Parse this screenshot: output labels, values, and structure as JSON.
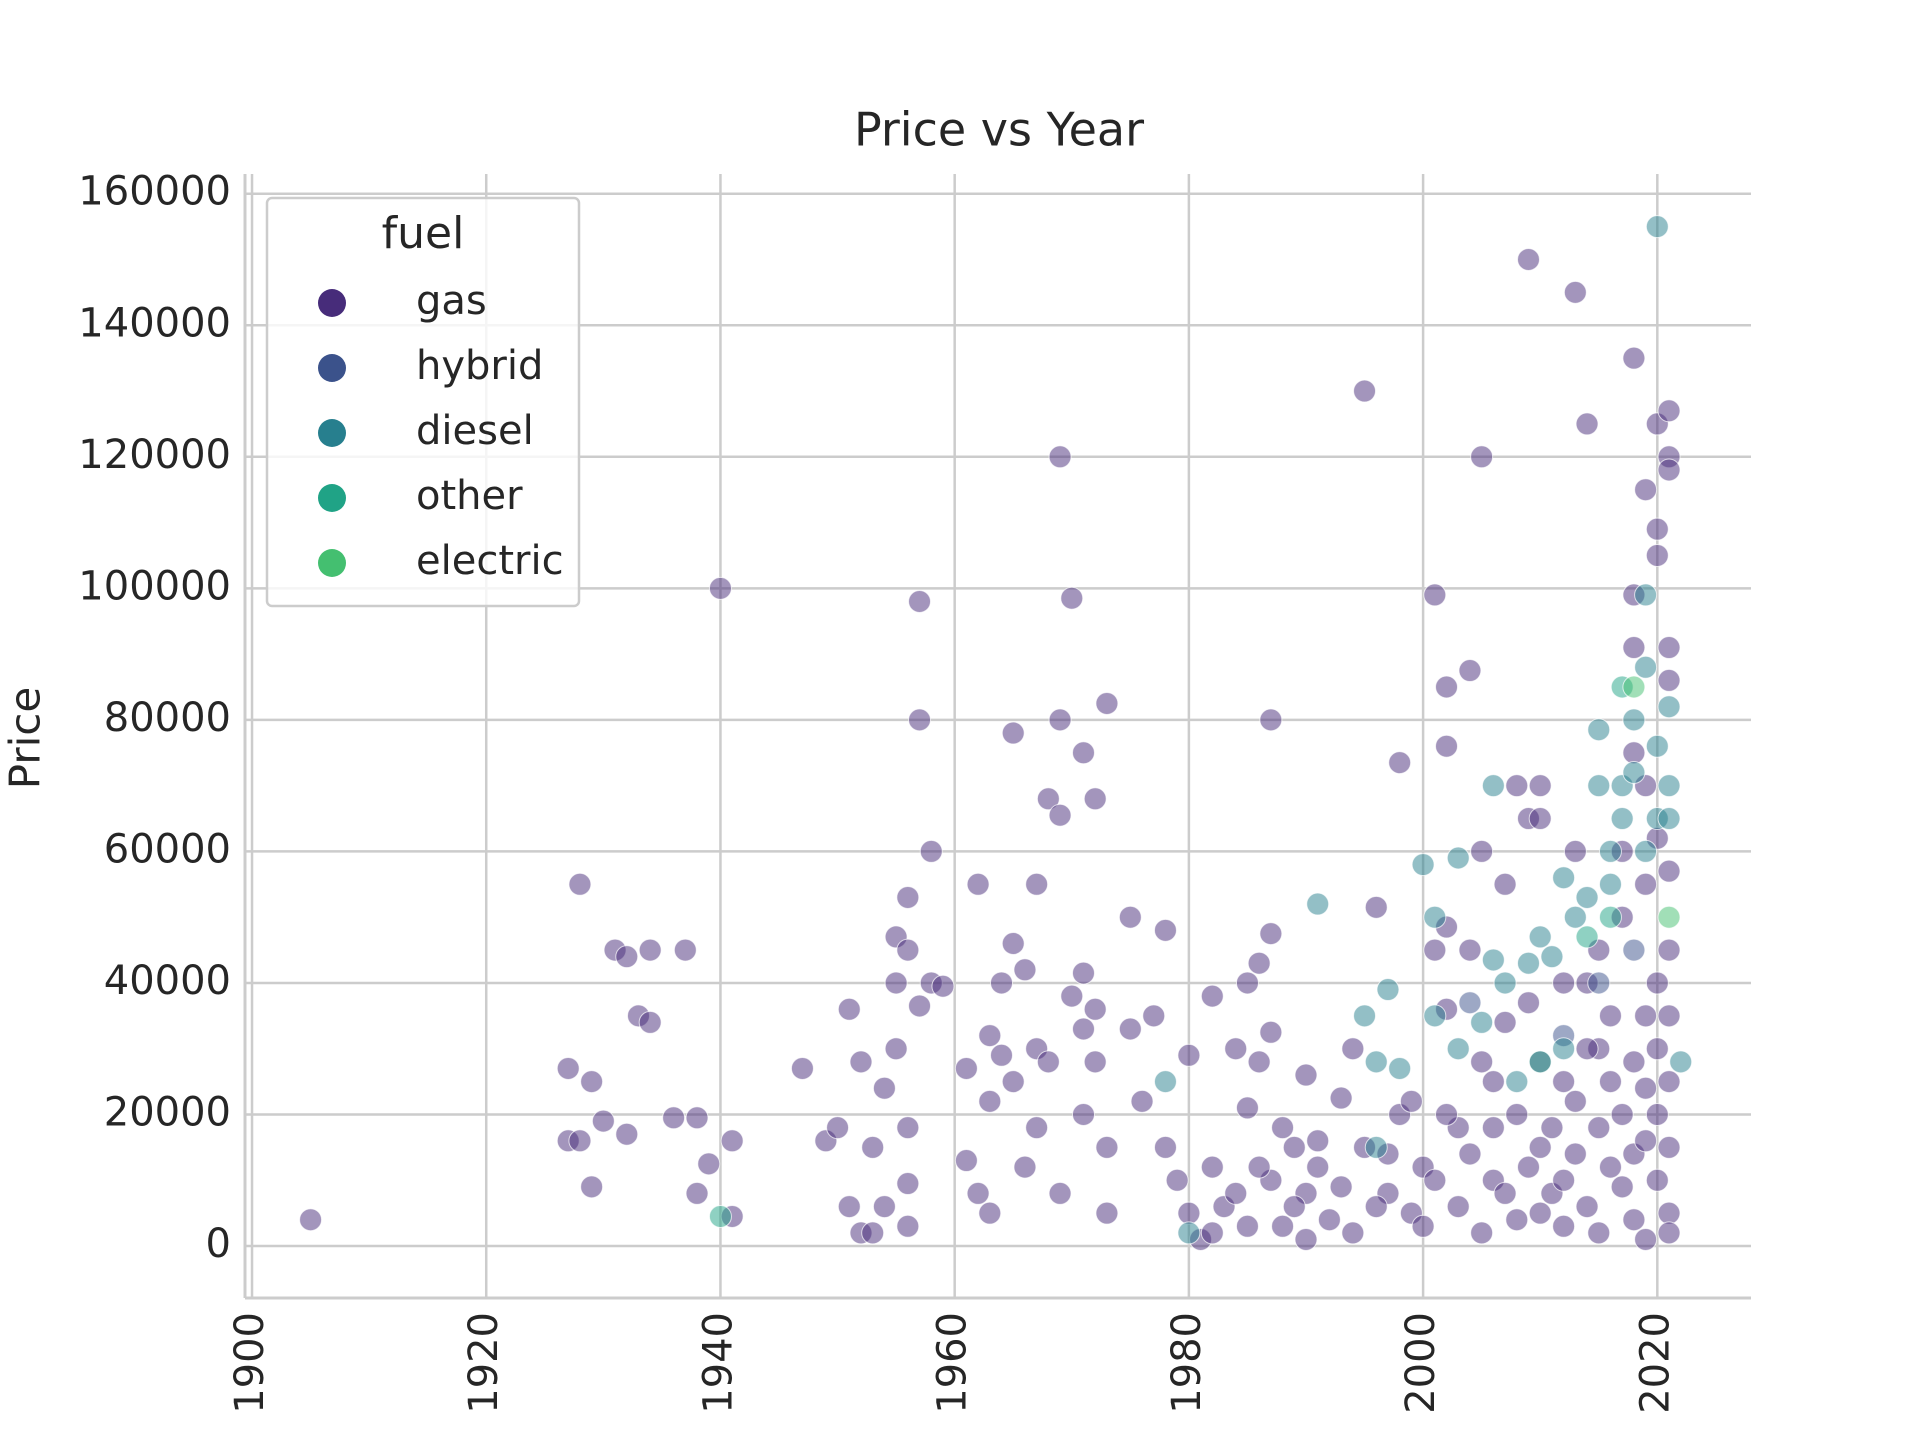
{
  "chart_data": {
    "type": "scatter",
    "title": "Price vs Year",
    "y_label": "Price",
    "legend_title": "fuel",
    "legend_position": "upper left",
    "grid": true,
    "xlim": [
      1899.4,
      2028
    ],
    "ylim": [
      -7900,
      163000
    ],
    "xticks": [
      1900,
      1920,
      1940,
      1960,
      1980,
      2000,
      2020
    ],
    "yticks": [
      0,
      20000,
      40000,
      60000,
      80000,
      100000,
      120000,
      140000,
      160000
    ],
    "series": [
      {
        "name": "gas",
        "color": "#472c7a",
        "x": [
          1905,
          1927,
          1927,
          1928,
          1928,
          1929,
          1929,
          1930,
          1931,
          1932,
          1932,
          1933,
          1934,
          1934,
          1936,
          1937,
          1938,
          1938,
          1939,
          1940,
          1941,
          1941,
          1947,
          1949,
          1950,
          1951,
          1951,
          1952,
          1952,
          1953,
          1953,
          1954,
          1954,
          1955,
          1955,
          1955,
          1956,
          1956,
          1956,
          1956,
          1956,
          1957,
          1957,
          1957,
          1958,
          1958,
          1959,
          1961,
          1961,
          1962,
          1962,
          1963,
          1963,
          1963,
          1964,
          1964,
          1965,
          1965,
          1965,
          1966,
          1966,
          1967,
          1967,
          1967,
          1968,
          1968,
          1969,
          1969,
          1969,
          1969,
          1970,
          1970,
          1971,
          1971,
          1971,
          1971,
          1972,
          1972,
          1972,
          1973,
          1973,
          1973,
          1975,
          1975,
          1976,
          1977,
          1978,
          1978,
          1979,
          1980,
          1980,
          1981,
          1982,
          1982,
          1983,
          1984,
          1985,
          1985,
          1986,
          1986,
          1987,
          1987,
          1987,
          1987,
          1988,
          1989,
          1990,
          1990,
          1991,
          1992,
          1993,
          1994,
          1995,
          1995,
          1996,
          1997,
          1998,
          1998,
          1999,
          2000,
          2001,
          2001,
          2002,
          2002,
          2002,
          2002,
          2003,
          2004,
          2004,
          2005,
          2005,
          2005,
          2006,
          2007,
          2007,
          2008,
          2008,
          2009,
          2009,
          2009,
          2010,
          2010,
          2010,
          2011,
          2012,
          2013,
          2013,
          2014,
          2014,
          2015,
          2016,
          2017,
          2018,
          2018,
          2018,
          2019,
          2019,
          2019,
          2020,
          2020,
          2020,
          2020,
          2021,
          2021,
          2021,
          2021,
          2021,
          2021,
          2021,
          2021,
          1982,
          1984,
          1985,
          1986,
          1988,
          1989,
          1990,
          1991,
          1993,
          1994,
          1996,
          1997,
          1999,
          2000,
          2001,
          2002,
          2003,
          2004,
          2005,
          2006,
          2006,
          2007,
          2008,
          2009,
          2010,
          2010,
          2011,
          2012,
          2012,
          2013,
          2013,
          2014,
          2014,
          2015,
          2015,
          2016,
          2016,
          2017,
          2017,
          2018,
          2018,
          2018,
          2019,
          2019,
          2019,
          2020,
          2020,
          2020,
          2021,
          2021,
          2021,
          2021,
          2012,
          2015,
          2017,
          2019,
          2020,
          2018
        ],
        "values": [
          4000,
          27000,
          16000,
          55000,
          16000,
          25000,
          9000,
          19000,
          45000,
          44000,
          17000,
          35000,
          34000,
          45000,
          19500,
          45000,
          19500,
          8000,
          12500,
          100000,
          4500,
          16000,
          27000,
          16000,
          18000,
          36000,
          6000,
          28000,
          2000,
          2000,
          15000,
          24000,
          6000,
          30000,
          40000,
          47000,
          53000,
          45000,
          18000,
          3000,
          9500,
          98000,
          80000,
          36500,
          60000,
          40000,
          39500,
          27000,
          13000,
          55000,
          8000,
          5000,
          32000,
          22000,
          29000,
          40000,
          78000,
          46000,
          25000,
          42000,
          12000,
          55000,
          18000,
          30000,
          68000,
          28000,
          120000,
          80000,
          65500,
          8000,
          98500,
          38000,
          75000,
          41500,
          33000,
          20000,
          68000,
          36000,
          28000,
          82500,
          15000,
          5000,
          50000,
          33000,
          22000,
          35000,
          48000,
          15000,
          10000,
          29000,
          5000,
          1000,
          38000,
          12000,
          6000,
          30000,
          40000,
          21000,
          43000,
          28000,
          80000,
          47500,
          32500,
          10000,
          3000,
          15000,
          26000,
          8000,
          12000,
          4000,
          22500,
          30000,
          130000,
          15000,
          51500,
          8000,
          73500,
          20000,
          5000,
          12000,
          99000,
          45000,
          85000,
          76000,
          48500,
          36000,
          18000,
          87500,
          45000,
          120000,
          60000,
          28000,
          10000,
          55000,
          34000,
          70000,
          20000,
          150000,
          65000,
          37000,
          70000,
          65000,
          15000,
          8000,
          25000,
          145000,
          60000,
          125000,
          40000,
          30000,
          12000,
          50000,
          135000,
          99000,
          91000,
          115000,
          70000,
          35000,
          125000,
          109000,
          105000,
          20000,
          127000,
          120000,
          118000,
          91000,
          86000,
          57000,
          45000,
          5000,
          2000,
          8000,
          3000,
          12000,
          18000,
          6000,
          1000,
          16000,
          9000,
          2000,
          6000,
          14000,
          22000,
          3000,
          10000,
          20000,
          6000,
          14000,
          2000,
          18000,
          25000,
          8000,
          4000,
          12000,
          28000,
          5000,
          18000,
          10000,
          3000,
          22000,
          14000,
          6000,
          30000,
          18000,
          2000,
          25000,
          35000,
          9000,
          20000,
          14000,
          28000,
          4000,
          16000,
          24000,
          1000,
          10000,
          30000,
          40000,
          15000,
          25000,
          35000,
          2000,
          40000,
          45000,
          60000,
          55000,
          62000,
          75000
        ]
      },
      {
        "name": "hybrid",
        "color": "#3b528b",
        "x": [
          2004,
          2012,
          2015,
          2018
        ],
        "values": [
          37000,
          32000,
          40000,
          45000
        ]
      },
      {
        "name": "diesel",
        "color": "#277f8e",
        "x": [
          1991,
          1995,
          1996,
          1997,
          1998,
          2000,
          2001,
          2001,
          2003,
          2003,
          2006,
          2006,
          2007,
          2008,
          2009,
          2010,
          2011,
          2012,
          2012,
          2013,
          2014,
          2015,
          2015,
          2016,
          2016,
          2017,
          2017,
          2018,
          2018,
          2019,
          2019,
          2019,
          2020,
          2020,
          2020,
          2021,
          2021,
          2021,
          2022,
          2005,
          1996,
          1980,
          1978
        ],
        "values": [
          52000,
          35000,
          28000,
          39000,
          27000,
          58000,
          50000,
          35000,
          59000,
          30000,
          70000,
          43500,
          40000,
          25000,
          43000,
          47000,
          44000,
          56000,
          30000,
          50000,
          53000,
          78500,
          70000,
          60000,
          55000,
          70000,
          65000,
          80000,
          72000,
          88000,
          99000,
          60000,
          155000,
          76000,
          65000,
          82000,
          70000,
          65000,
          28000,
          34000,
          15000,
          2000,
          25000
        ]
      },
      {
        "name": "other",
        "color": "#20a386",
        "x": [
          1940,
          2017,
          2014,
          2016,
          2010
        ],
        "values": [
          4500,
          85000,
          47000,
          50000,
          28000
        ]
      },
      {
        "name": "electric",
        "color": "#44bf70",
        "x": [
          2021,
          2018
        ],
        "values": [
          50000,
          85000
        ]
      }
    ]
  }
}
